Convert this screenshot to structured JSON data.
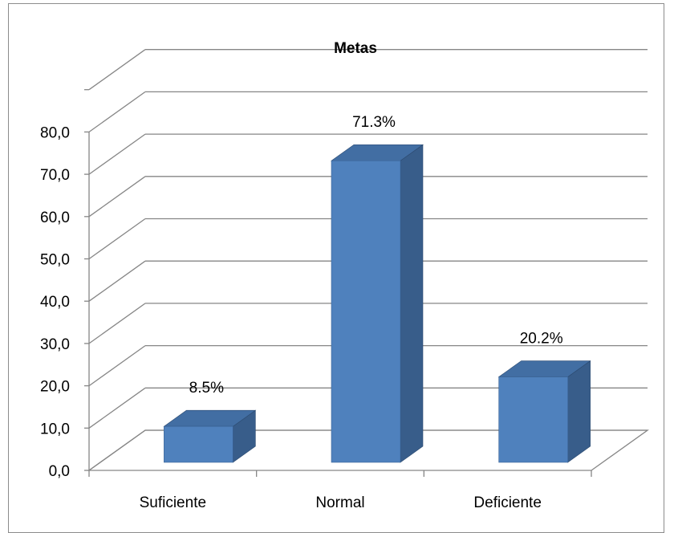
{
  "chart_data": {
    "type": "bar",
    "title": "Metas",
    "categories": [
      "Suficiente",
      "Normal",
      "Deficiente"
    ],
    "values": [
      8.5,
      71.3,
      20.2
    ],
    "data_labels": [
      "8.5%",
      "71.3%",
      "20.2%"
    ],
    "y_ticks": [
      "0,0",
      "10,0",
      "20,0",
      "30,0",
      "40,0",
      "50,0",
      "60,0",
      "70,0",
      "80,0"
    ],
    "ylim": [
      0,
      90
    ],
    "grid": true,
    "legend": "none",
    "style": "3d-column",
    "colors": {
      "bar_front": "#4f81bd",
      "bar_side": "#385d8a",
      "bar_top": "#426ea3",
      "grid": "#868686"
    }
  }
}
